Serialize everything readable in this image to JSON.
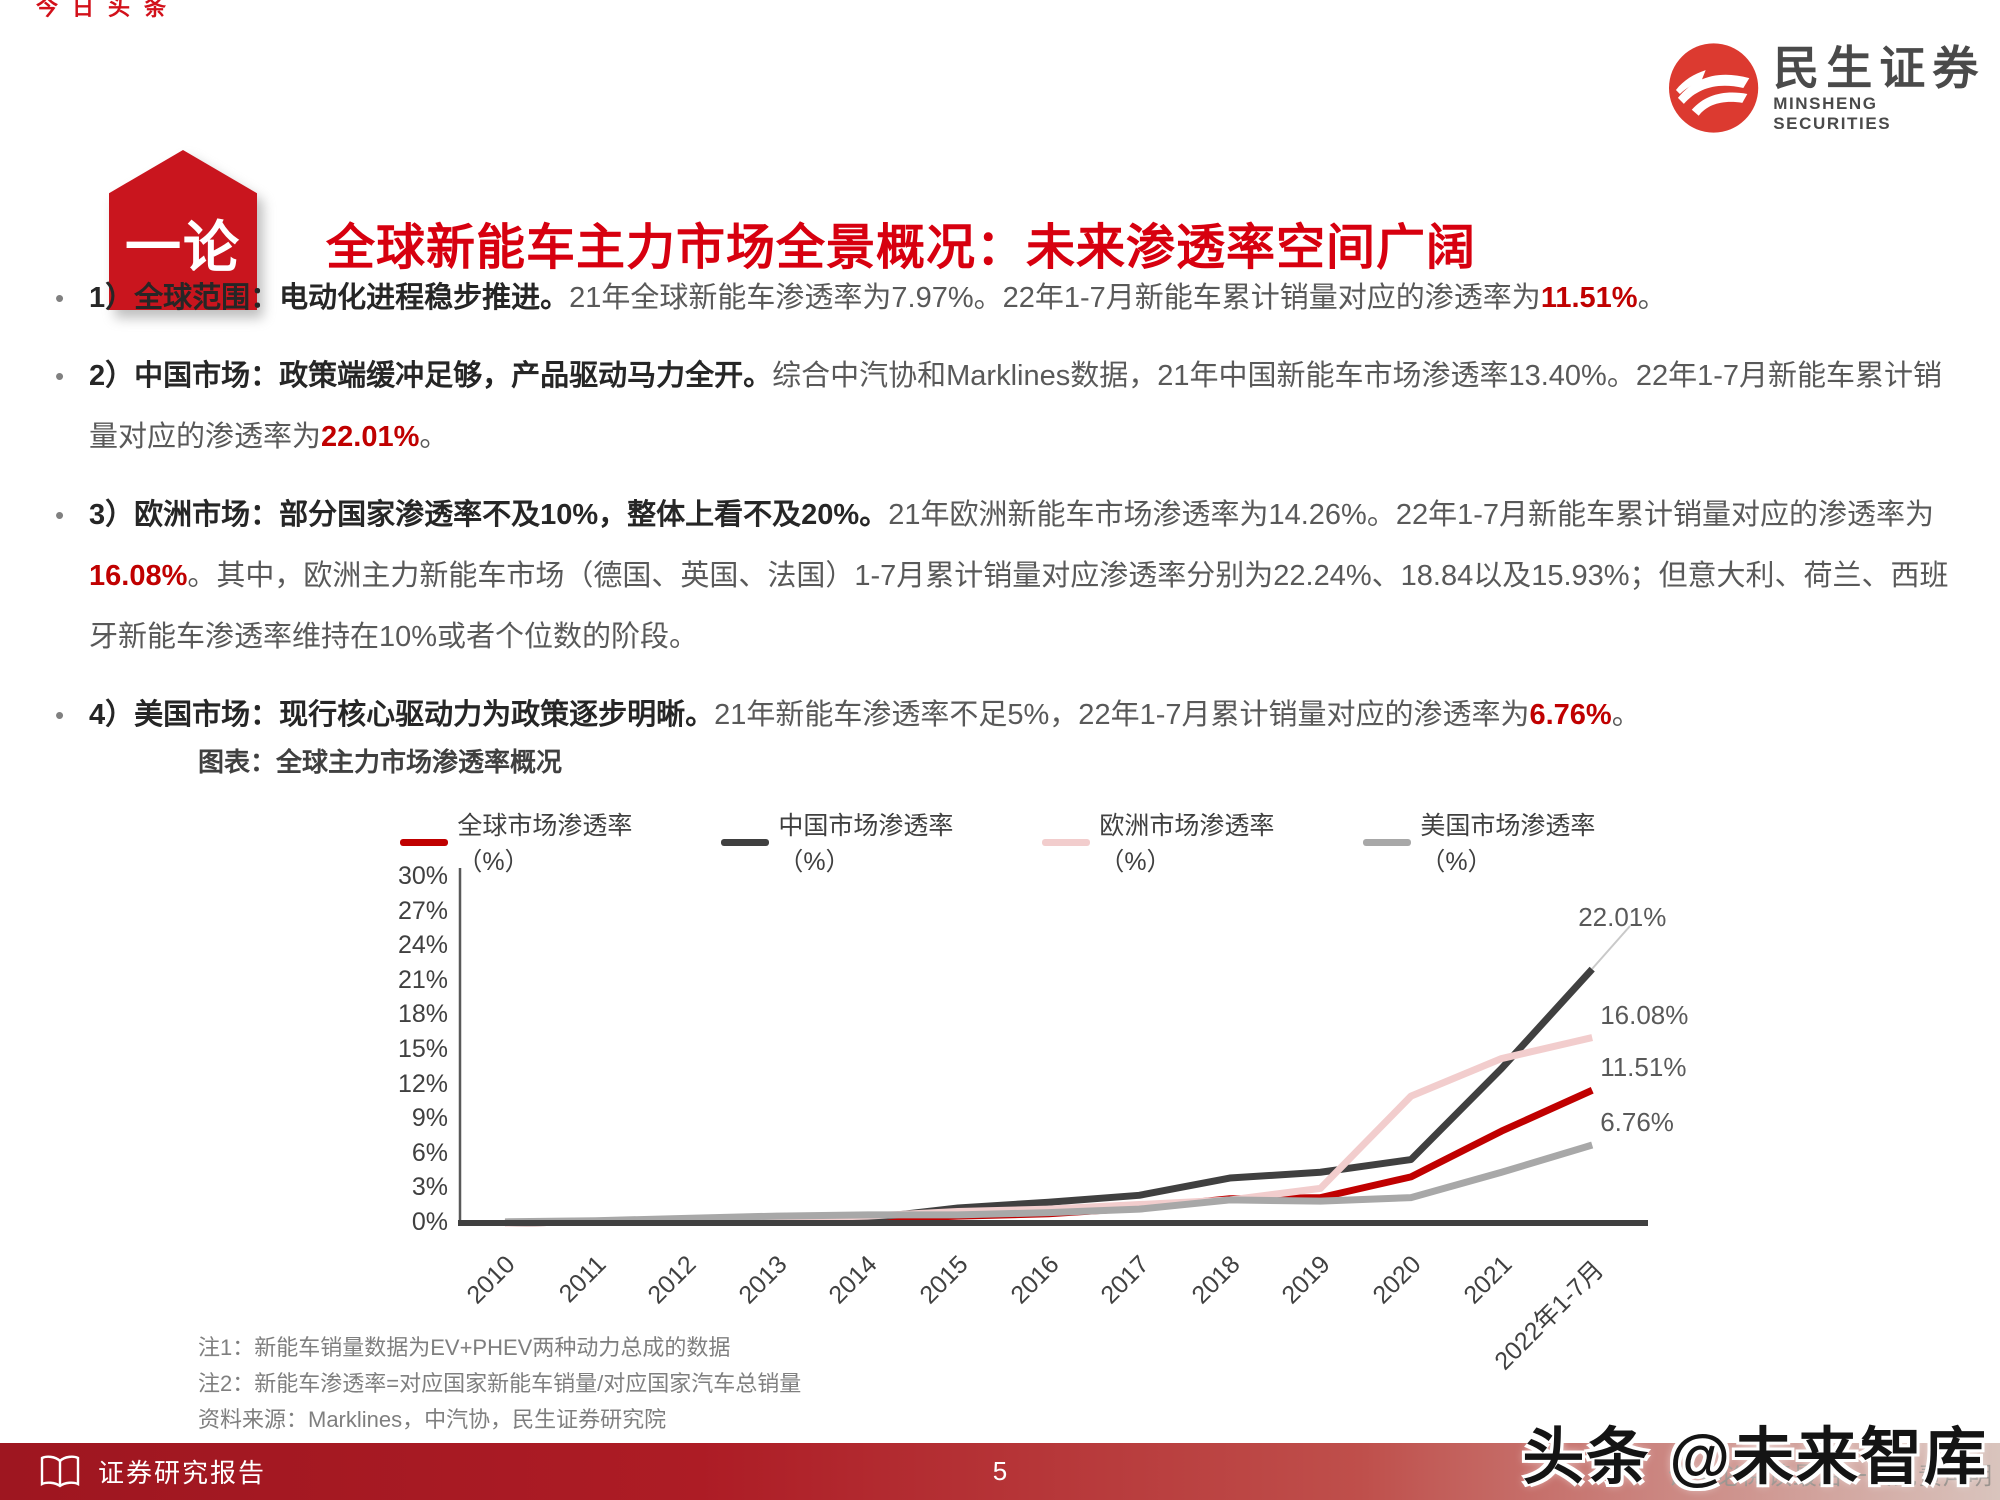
{
  "accent_red": "#d7000f",
  "em_red": "#c00000",
  "top_left_fragment": "今日头条",
  "logo": {
    "cn": "民生证券",
    "en": "MINSHENG SECURITIES"
  },
  "header": {
    "badge": "一论",
    "title": "全球新能车主力市场全景概况：未来渗透率空间广阔"
  },
  "bullets": [
    {
      "marker": "•",
      "bold": "1）全球范围：电动化进程稳步推进。",
      "normal": "21年全球新能车渗透率为7.97%。22年1-7月新能车累计销量对应的渗透率为",
      "em": "11.51%",
      "tail": "。"
    },
    {
      "marker": "•",
      "bold": "2）中国市场：政策端缓冲足够，产品驱动马力全开。",
      "normal": "综合中汽协和Marklines数据，21年中国新能车市场渗透率13.40%。22年1-7月新能车累计销量对应的渗透率为",
      "em": "22.01%",
      "tail": "。"
    },
    {
      "marker": "•",
      "bold": "3）欧洲市场：部分国家渗透率不及10%，整体上看不及20%。",
      "normal": "21年欧洲新能车市场渗透率为14.26%。22年1-7月新能车累计销量对应的渗透率为",
      "em": "16.08%",
      "tail": "。其中，欧洲主力新能车市场（德国、英国、法国）1-7月累计销量对应渗透率分别为22.24%、18.84以及15.93%；但意大利、荷兰、西班牙新能车渗透率维持在10%或者个位数的阶段。"
    },
    {
      "marker": "•",
      "bold": "4）美国市场：现行核心驱动力为政策逐步明晰。",
      "normal": "21年新能车渗透率不足5%，22年1-7月累计销量对应的渗透率为",
      "em": "6.76%",
      "tail": "。"
    }
  ],
  "chart_title": "图表：全球主力市场渗透率概况",
  "chart_data": {
    "type": "line",
    "title": "图表：全球主力市场渗透率概况",
    "categories": [
      "2010",
      "2011",
      "2012",
      "2013",
      "2014",
      "2015",
      "2016",
      "2017",
      "2018",
      "2019",
      "2020",
      "2021",
      "2022年1-7月"
    ],
    "series": [
      {
        "name": "全球市场渗透率（%）",
        "color": "#c00000",
        "values": [
          0.0,
          0.1,
          0.1,
          0.2,
          0.3,
          0.6,
          0.8,
          1.3,
          2.1,
          2.2,
          4.0,
          7.97,
          11.51
        ],
        "end_label": "11.51%",
        "end_label_dy": -38
      },
      {
        "name": "中国市场渗透率（%）",
        "color": "#404040",
        "values": [
          0.0,
          0.1,
          0.1,
          0.2,
          0.4,
          1.3,
          1.8,
          2.4,
          3.9,
          4.4,
          5.5,
          13.4,
          22.01
        ],
        "end_label": "22.01%",
        "end_label_dy": -67
      },
      {
        "name": "欧洲市场渗透率（%）",
        "color": "#f2cdcd",
        "values": [
          0.0,
          0.1,
          0.2,
          0.4,
          0.6,
          1.0,
          1.2,
          1.6,
          2.0,
          3.0,
          11.0,
          14.26,
          16.08
        ],
        "end_label": "16.08%",
        "end_label_dy": -38
      },
      {
        "name": "美国市场渗透率（%）",
        "color": "#a8a8a8",
        "values": [
          0.1,
          0.2,
          0.4,
          0.6,
          0.7,
          0.7,
          0.9,
          1.2,
          2.0,
          1.9,
          2.2,
          4.4,
          6.76
        ],
        "end_label": "6.76%",
        "end_label_dy": -38
      }
    ],
    "ylim": [
      0,
      30
    ],
    "ytick_step": 3,
    "ytick_labels": [
      "0%",
      "3%",
      "6%",
      "9%",
      "12%",
      "15%",
      "18%",
      "21%",
      "24%",
      "27%",
      "30%"
    ],
    "grid": false,
    "legend_position": "top",
    "annotations": [
      "22.01%",
      "16.08%",
      "11.51%",
      "6.76%"
    ]
  },
  "notes": [
    "注1：新能车销量数据为EV+PHEV两种动力总成的数据",
    "注2：新能车渗透率=对应国家新能车销量/对应国家汽车总销量",
    "资料来源：Marklines，中汽协，民生证券研究院"
  ],
  "footer": {
    "report_label": "证券研究报告",
    "page_number": "5",
    "disclaimer": "请务必阅读最后一页免责声明"
  },
  "watermark": "头条 @未来智库"
}
